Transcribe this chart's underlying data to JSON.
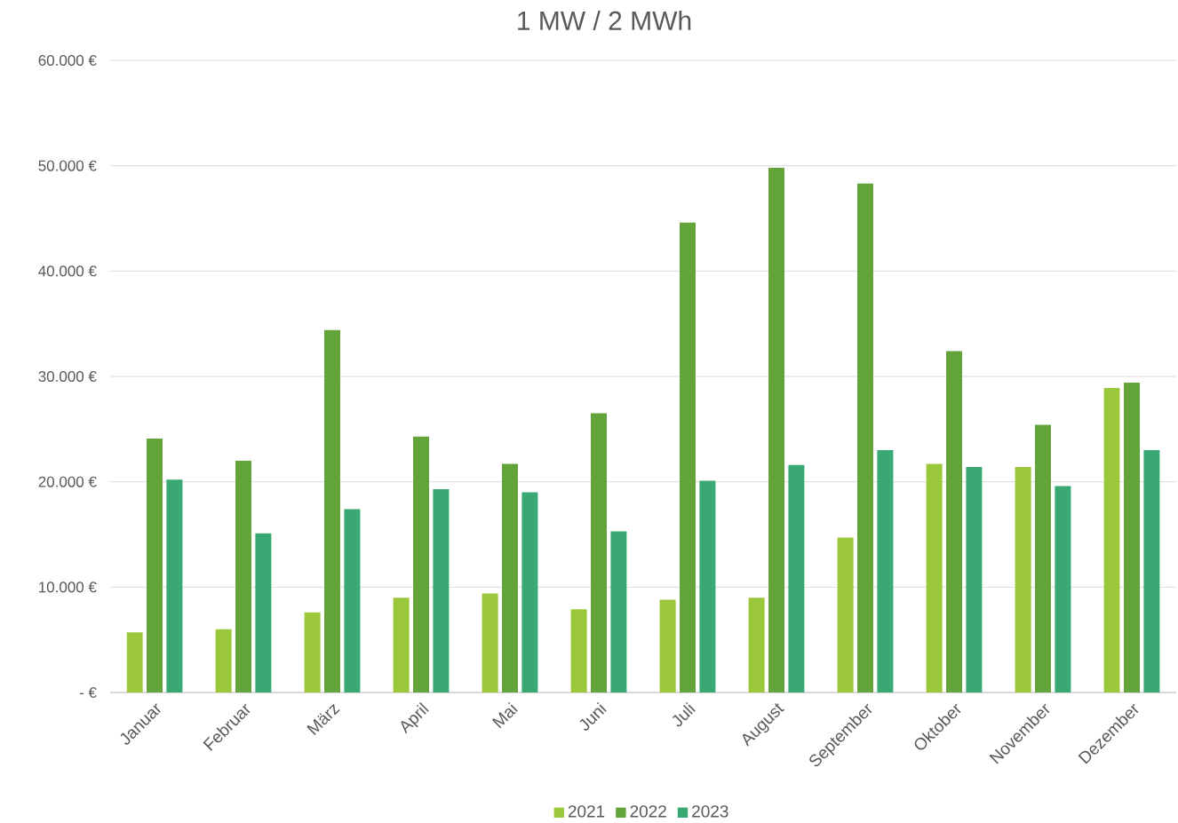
{
  "chart_data": {
    "type": "bar",
    "title": "1 MW / 2 MWh",
    "categories": [
      "Januar",
      "Februar",
      "März",
      "April",
      "Mai",
      "Juni",
      "Juli",
      "August",
      "September",
      "Oktober",
      "November",
      "Dezember"
    ],
    "series": [
      {
        "name": "2021",
        "color": "#9bc83a",
        "values": [
          5700,
          6000,
          7600,
          9000,
          9400,
          7900,
          8800,
          9000,
          14700,
          21700,
          21400,
          28900
        ]
      },
      {
        "name": "2022",
        "color": "#63a43a",
        "values": [
          24100,
          22000,
          34400,
          24300,
          21700,
          26500,
          44600,
          49800,
          48300,
          32400,
          25400,
          29400
        ]
      },
      {
        "name": "2023",
        "color": "#3aa872",
        "values": [
          20200,
          15100,
          17400,
          19300,
          19000,
          15300,
          20100,
          21600,
          23000,
          21400,
          19600,
          23000
        ]
      }
    ],
    "ylim": [
      0,
      60000
    ],
    "yticks": [
      {
        "value": 0,
        "label": "-   €"
      },
      {
        "value": 10000,
        "label": "10.000 €"
      },
      {
        "value": 20000,
        "label": "20.000 €"
      },
      {
        "value": 30000,
        "label": "30.000 €"
      },
      {
        "value": 40000,
        "label": "40.000 €"
      },
      {
        "value": 50000,
        "label": "50.000 €"
      },
      {
        "value": 60000,
        "label": "60.000 €"
      }
    ],
    "grid": "y",
    "legend": "bottom"
  }
}
